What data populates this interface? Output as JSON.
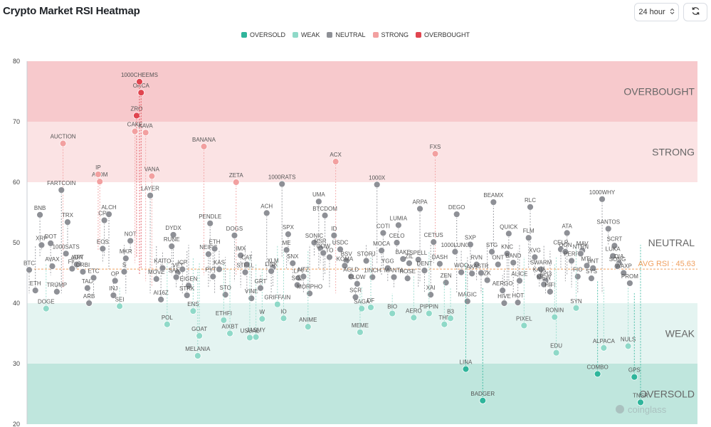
{
  "header": {
    "title": "Crypto Market RSI Heatmap",
    "interval": "24 hour"
  },
  "icons": {
    "select_chevron": "chevron-up-down-icon",
    "refresh": "refresh-icon",
    "watermark": "coinglass-logo"
  },
  "watermark": "coinglass",
  "colors": {
    "oversold": "#2fb59b",
    "weak": "#8fd9c8",
    "neutral": "#8e9096",
    "strong": "#f2a0a0",
    "overbought": "#e0454f",
    "avg_line": "#f0a060",
    "bg_overbought": "#f7c9cc",
    "bg_strong": "#fbe3e4",
    "bg_weak": "#e4f4f1",
    "bg_oversold": "#bfe6dd"
  },
  "legend": [
    "OVERSOLD",
    "WEAK",
    "NEUTRAL",
    "STRONG",
    "OVERBOUGHT"
  ],
  "chart_data": {
    "type": "scatter",
    "title": "Crypto Market RSI Heatmap",
    "ylim": [
      20,
      80
    ],
    "yticks": [
      20,
      30,
      40,
      50,
      60,
      70,
      80
    ],
    "grid": false,
    "legend_position": "top-center",
    "zones": [
      {
        "name": "OVERBOUGHT",
        "from": 70,
        "to": 80
      },
      {
        "name": "STRONG",
        "from": 60,
        "to": 70
      },
      {
        "name": "NEUTRAL",
        "from": 40,
        "to": 60
      },
      {
        "name": "WEAK",
        "from": 30,
        "to": 40
      },
      {
        "name": "OVERSOLD",
        "from": 20,
        "to": 30
      }
    ],
    "avg_rsi": 45.63,
    "avg_label": "AVG RSI : 45.63",
    "points": [
      [
        "BTC",
        45.5
      ],
      [
        "ETH",
        42.1
      ],
      [
        "XRP",
        49.6
      ],
      [
        "BNB",
        54.6
      ],
      [
        "DOGE",
        39.1
      ],
      [
        "AVAX",
        46.1
      ],
      [
        "DOT",
        49.9
      ],
      [
        "TRUMP",
        41.9
      ],
      [
        "AUCTION",
        66.4
      ],
      [
        "FARTCOIN",
        58.7
      ],
      [
        "TRX",
        53.4
      ],
      [
        "1000SATS",
        48.2
      ],
      [
        "FIL",
        45.7
      ],
      [
        "APT",
        46.5
      ],
      [
        "ADA",
        46.4
      ],
      [
        "ORBI",
        45.2
      ],
      [
        "ARB",
        40.0
      ],
      [
        "TAO",
        42.5
      ],
      [
        "ETC",
        44.2
      ],
      [
        "ATOM",
        60.1
      ],
      [
        "IP",
        61.3
      ],
      [
        "CRV",
        53.7
      ],
      [
        "EOS",
        49.0
      ],
      [
        "ALCH",
        54.7
      ],
      [
        "OP",
        43.7
      ],
      [
        "INJ",
        41.3
      ],
      [
        "SEI",
        39.5
      ],
      [
        "MKR",
        47.4
      ],
      [
        "S",
        45.2
      ],
      [
        "NOT",
        50.3
      ],
      [
        "ZRO",
        71.0
      ],
      [
        "CAKE",
        68.4
      ],
      [
        "ORCA",
        74.8
      ],
      [
        "1000CHEEMS",
        76.6
      ],
      [
        "KAVA",
        68.2
      ],
      [
        "VANA",
        61.0
      ],
      [
        "LAYER",
        57.8
      ],
      [
        "MOVE",
        44.0
      ],
      [
        "KAITO",
        45.8
      ],
      [
        "AI16Z",
        40.6
      ],
      [
        "POL",
        36.5
      ],
      [
        "DYDX",
        51.3
      ],
      [
        "RUNE",
        49.4
      ],
      [
        "VET",
        45.1
      ],
      [
        "SAND",
        44.3
      ],
      [
        "ICP",
        45.6
      ],
      [
        "EIGEN",
        42.9
      ],
      [
        "STRK",
        41.3
      ],
      [
        "ENS",
        38.7
      ],
      [
        "GOAT",
        34.6
      ],
      [
        "MELANIA",
        31.3
      ],
      [
        "BANANA",
        65.9
      ],
      [
        "PENDLE",
        53.2
      ],
      [
        "NEIRO",
        48.1
      ],
      [
        "ETH",
        49.0
      ],
      [
        "PYTH",
        44.4
      ],
      [
        "KAS",
        45.6
      ],
      [
        "STO",
        41.4
      ],
      [
        "ETHFI",
        37.2
      ],
      [
        "AIXBT",
        35.0
      ],
      [
        "ZETA",
        60.0
      ],
      [
        "DOGS",
        51.2
      ],
      [
        "IMX",
        47.9
      ],
      [
        "CAT",
        46.4
      ],
      [
        "STELL",
        45.1
      ],
      [
        "VINE",
        40.8
      ],
      [
        "USUAL",
        34.3
      ],
      [
        "JASMY",
        34.4
      ],
      [
        "W",
        37.4
      ],
      [
        "GRT",
        42.5
      ],
      [
        "ACH",
        54.9
      ],
      [
        "XLM",
        45.9
      ],
      [
        "LINK",
        45.3
      ],
      [
        "GRIFFAIN",
        39.8
      ],
      [
        "IO",
        37.5
      ],
      [
        "1000RATS",
        59.7
      ],
      [
        "SPX",
        51.4
      ],
      [
        "ME",
        48.8
      ],
      [
        "SNX",
        46.6
      ],
      [
        "LPT",
        44.2
      ],
      [
        "SOL",
        43.0
      ],
      [
        "NTZ",
        44.4
      ],
      [
        "MORPHO",
        41.6
      ],
      [
        "ANIME",
        36.1
      ],
      [
        "SONIC",
        50.0
      ],
      [
        "RSR",
        49.1
      ],
      [
        "UMA",
        56.8
      ],
      [
        "BTCDOM",
        54.5
      ],
      [
        "COW",
        48.3
      ],
      [
        "TO",
        47.6
      ],
      [
        "ACX",
        63.4
      ],
      [
        "ID",
        51.2
      ],
      [
        "USDC",
        48.9
      ],
      [
        "BSV",
        47.0
      ],
      [
        "KOMA",
        46.2
      ],
      [
        "AGLD",
        44.4
      ],
      [
        "FLOW",
        43.2
      ],
      [
        "SCR",
        41.0
      ],
      [
        "SAGA",
        39.1
      ],
      [
        "MEME",
        35.2
      ],
      [
        "STORJ",
        47.0
      ],
      [
        "1INCH",
        44.3
      ],
      [
        "DF",
        39.3
      ],
      [
        "1000X",
        59.6
      ],
      [
        "COTI",
        51.6
      ],
      [
        "MOCA",
        48.7
      ],
      [
        "YGG",
        45.8
      ],
      [
        "MANTA",
        44.3
      ],
      [
        "BIO",
        38.3
      ],
      [
        "LUMIA",
        52.9
      ],
      [
        "CELO",
        50.0
      ],
      [
        "BAKE",
        47.3
      ],
      [
        "ZIL",
        46.6
      ],
      [
        "ROSE",
        44.1
      ],
      [
        "AERO",
        37.6
      ],
      [
        "ARPA",
        55.6
      ],
      [
        "SPELL",
        47.2
      ],
      [
        "DENT",
        45.4
      ],
      [
        "XAI",
        41.4
      ],
      [
        "PIPPIN",
        38.3
      ],
      [
        "FXS",
        64.7
      ],
      [
        "CETUS",
        50.1
      ],
      [
        "DASH",
        46.5
      ],
      [
        "ZEN",
        43.4
      ],
      [
        "THE",
        36.5
      ],
      [
        "B3",
        37.5
      ],
      [
        "DEGO",
        54.7
      ],
      [
        "1000LUNC",
        48.5
      ],
      [
        "WOO",
        45.1
      ],
      [
        "MAGIC",
        40.3
      ],
      [
        "LINA",
        29.1
      ],
      [
        "AKT",
        44.9
      ],
      [
        "SXP",
        49.7
      ],
      [
        "RVN",
        46.4
      ],
      [
        "BADGER",
        23.9
      ],
      [
        "ASTR",
        45.0
      ],
      [
        "ZK",
        43.8
      ],
      [
        "BEAMX",
        56.7
      ],
      [
        "STG",
        48.5
      ],
      [
        "ONT",
        46.4
      ],
      [
        "HIVE",
        40.0
      ],
      [
        "AERGO",
        42.1
      ],
      [
        "QUICK",
        51.5
      ],
      [
        "KNC",
        48.2
      ],
      [
        "BAND",
        46.7
      ],
      [
        "ALICE",
        43.7
      ],
      [
        "HOT",
        40.1
      ],
      [
        "PIXEL",
        36.3
      ],
      [
        "RLC",
        55.9
      ],
      [
        "FLM",
        50.8
      ],
      [
        "XVG",
        47.6
      ],
      [
        "SWARM",
        45.6
      ],
      [
        "KAIA",
        44.4
      ],
      [
        "API3",
        43.7
      ],
      [
        "MEW",
        43.1
      ],
      [
        "HIFI",
        41.9
      ],
      [
        "EDU",
        31.8
      ],
      [
        "RONIN",
        37.7
      ],
      [
        "CELR",
        48.9
      ],
      [
        "ATA",
        51.6
      ],
      [
        "OGN",
        48.5
      ],
      [
        "PERP",
        47.0
      ],
      [
        "FIO",
        44.4
      ],
      [
        "SYN",
        39.2
      ],
      [
        "MAV",
        48.7
      ],
      [
        "NTRN",
        48.2
      ],
      [
        "MTL",
        46.2
      ],
      [
        "BNT",
        45.8
      ],
      [
        "SYS",
        44.1
      ],
      [
        "COMBO",
        28.3
      ],
      [
        "ALPACA",
        32.6
      ],
      [
        "1000WHY",
        57.2
      ],
      [
        "SANTOS",
        52.3
      ],
      [
        "SCRT",
        49.5
      ],
      [
        "LUKA",
        47.8
      ],
      [
        "DIA",
        46.6
      ],
      [
        "SONG",
        46.1
      ],
      [
        "WAXP",
        45.0
      ],
      [
        "PROM",
        43.3
      ],
      [
        "NULS",
        32.9
      ],
      [
        "GPS",
        27.8
      ],
      [
        "TNSR",
        23.6
      ]
    ]
  }
}
